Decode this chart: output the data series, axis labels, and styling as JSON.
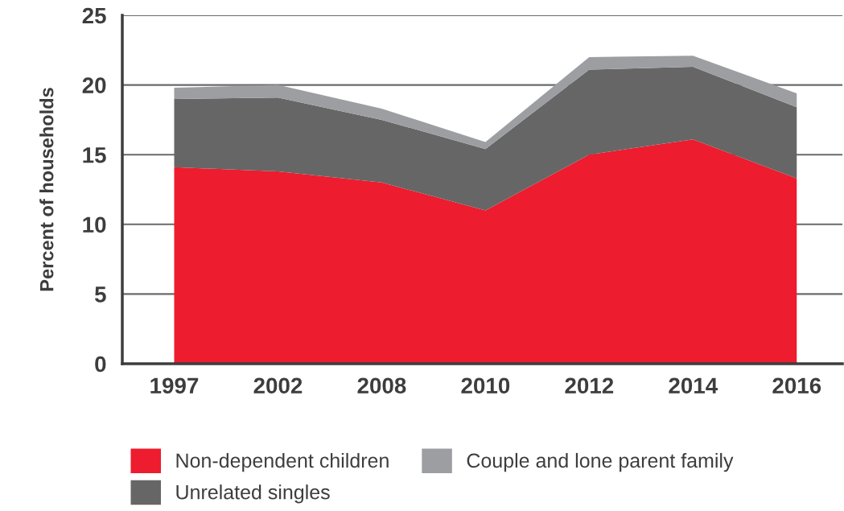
{
  "chart_data": {
    "type": "area",
    "stacked": true,
    "ylabel": "Percent of households",
    "categories": [
      "1997",
      "2002",
      "2008",
      "2010",
      "2012",
      "2014",
      "2016"
    ],
    "series": [
      {
        "name": "Non-dependent children",
        "color": "#ed1c2e",
        "values": [
          14.1,
          13.8,
          13.0,
          11.0,
          15.0,
          16.1,
          13.3
        ]
      },
      {
        "name": "Unrelated singles",
        "color": "#666666",
        "values": [
          4.9,
          5.3,
          4.5,
          4.4,
          6.1,
          5.2,
          5.1
        ]
      },
      {
        "name": "Couple and lone parent family",
        "color": "#9d9ea2",
        "values": [
          0.8,
          0.9,
          0.8,
          0.5,
          0.9,
          0.8,
          1.0
        ]
      }
    ],
    "ylim": [
      0,
      25
    ],
    "yticks": [
      0,
      5,
      10,
      15,
      20,
      25
    ],
    "grid": "y",
    "legend": "bottom"
  }
}
